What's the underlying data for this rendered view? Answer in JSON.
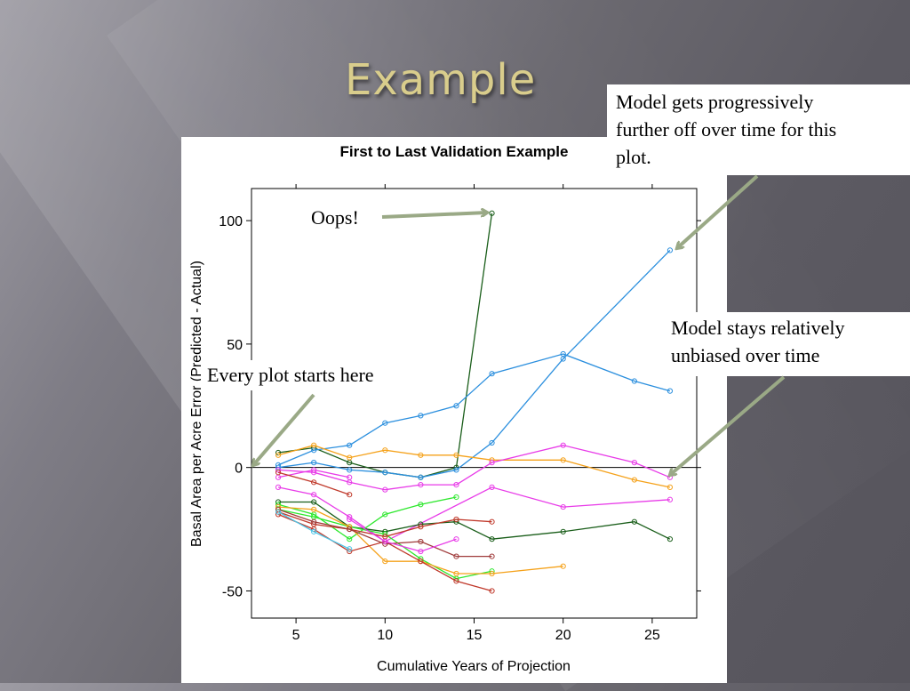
{
  "slide": {
    "title": "Example"
  },
  "annotations": {
    "top_right": [
      "Model gets progressively",
      "further off over time for this",
      "plot."
    ],
    "middle_right": [
      "Model stays relatively",
      "unbiased over time"
    ],
    "oops": "Oops!",
    "start": "Every plot starts here"
  },
  "colors": {
    "annotation_arrow": "#9aa986",
    "title": "#d9cd8c"
  },
  "chart_data": {
    "type": "line",
    "title": "First to Last Validation Example",
    "xlabel": "Cumulative Years of Projection",
    "ylabel": "Basal Area per Acre Error (Predicted - Actual)",
    "xlim": [
      2.5,
      27.5
    ],
    "ylim": [
      -61,
      113
    ],
    "xticks": [
      5,
      10,
      15,
      20,
      25
    ],
    "yticks": [
      -50,
      0,
      50,
      100
    ],
    "reference_line": 0,
    "grid": false,
    "series": [
      {
        "color": "#1a5e1a",
        "x": [
          4,
          6,
          8,
          10,
          12,
          14,
          16
        ],
        "y": [
          6,
          8,
          2,
          -2,
          -4,
          0,
          103
        ]
      },
      {
        "color": "#2b8fde",
        "x": [
          4,
          6,
          8,
          10,
          12,
          14,
          16,
          20,
          24,
          26
        ],
        "y": [
          1,
          7,
          9,
          18,
          21,
          25,
          38,
          46,
          35,
          31
        ]
      },
      {
        "color": "#2b8fde",
        "x": [
          4,
          6,
          8,
          10,
          12,
          14,
          16,
          20,
          26
        ],
        "y": [
          0,
          2,
          -1,
          -2,
          -4,
          -1,
          10,
          44,
          88
        ]
      },
      {
        "color": "#f5a21b",
        "x": [
          4,
          6,
          8,
          10,
          12,
          14,
          16,
          20,
          24,
          26
        ],
        "y": [
          5,
          9,
          4,
          7,
          5,
          5,
          3,
          3,
          -5,
          -8
        ]
      },
      {
        "color": "#e83be8",
        "x": [
          4,
          6,
          8,
          10,
          12,
          14,
          16,
          20,
          24,
          26
        ],
        "y": [
          -1,
          -2,
          -6,
          -9,
          -7,
          -7,
          2,
          9,
          2,
          -4
        ]
      },
      {
        "color": "#e83be8",
        "x": [
          4,
          6,
          8,
          10,
          16,
          20,
          26
        ],
        "y": [
          -8,
          -11,
          -20,
          -30,
          -8,
          -16,
          -13
        ]
      },
      {
        "color": "#e83be8",
        "x": [
          4,
          6,
          8
        ],
        "y": [
          -4,
          -1,
          -4
        ]
      },
      {
        "color": "#1a5e1a",
        "x": [
          4,
          6,
          8,
          10,
          12,
          14,
          16,
          20,
          24,
          26
        ],
        "y": [
          -14,
          -14,
          -24,
          -26,
          -23,
          -22,
          -29,
          -26,
          -22,
          -29
        ]
      },
      {
        "color": "#2ee82e",
        "x": [
          4,
          6,
          8,
          10,
          12,
          14
        ],
        "y": [
          -15,
          -19,
          -29,
          -19,
          -15,
          -12
        ]
      },
      {
        "color": "#2ee82e",
        "x": [
          4,
          6,
          8,
          10,
          12,
          14,
          16
        ],
        "y": [
          -17,
          -20,
          -24,
          -27,
          -37,
          -45,
          -42
        ]
      },
      {
        "color": "#f5a21b",
        "x": [
          4,
          6,
          8,
          10,
          12,
          14,
          16,
          20
        ],
        "y": [
          -16,
          -17,
          -24,
          -38,
          -38,
          -43,
          -43,
          -40
        ]
      },
      {
        "color": "#c0392b",
        "x": [
          4,
          6,
          8
        ],
        "y": [
          -2,
          -6,
          -11
        ]
      },
      {
        "color": "#c0392b",
        "x": [
          4,
          6,
          8,
          10,
          12,
          14,
          16
        ],
        "y": [
          -19,
          -25,
          -34,
          -30,
          -38,
          -46,
          -50
        ]
      },
      {
        "color": "#c0392b",
        "x": [
          4,
          6,
          8,
          10,
          12,
          14,
          16
        ],
        "y": [
          -18,
          -23,
          -25,
          -28,
          -24,
          -21,
          -22
        ]
      },
      {
        "color": "#a03c3c",
        "x": [
          4,
          6,
          8,
          10,
          12,
          14,
          16
        ],
        "y": [
          -17,
          -22,
          -25,
          -31,
          -30,
          -36,
          -36
        ]
      },
      {
        "color": "#4bc6e8",
        "x": [
          4,
          6,
          8
        ],
        "y": [
          -18,
          -26,
          -33
        ]
      },
      {
        "color": "#e83be8",
        "x": [
          8,
          10,
          12,
          14
        ],
        "y": [
          -21,
          -30,
          -34,
          -29
        ]
      }
    ]
  }
}
